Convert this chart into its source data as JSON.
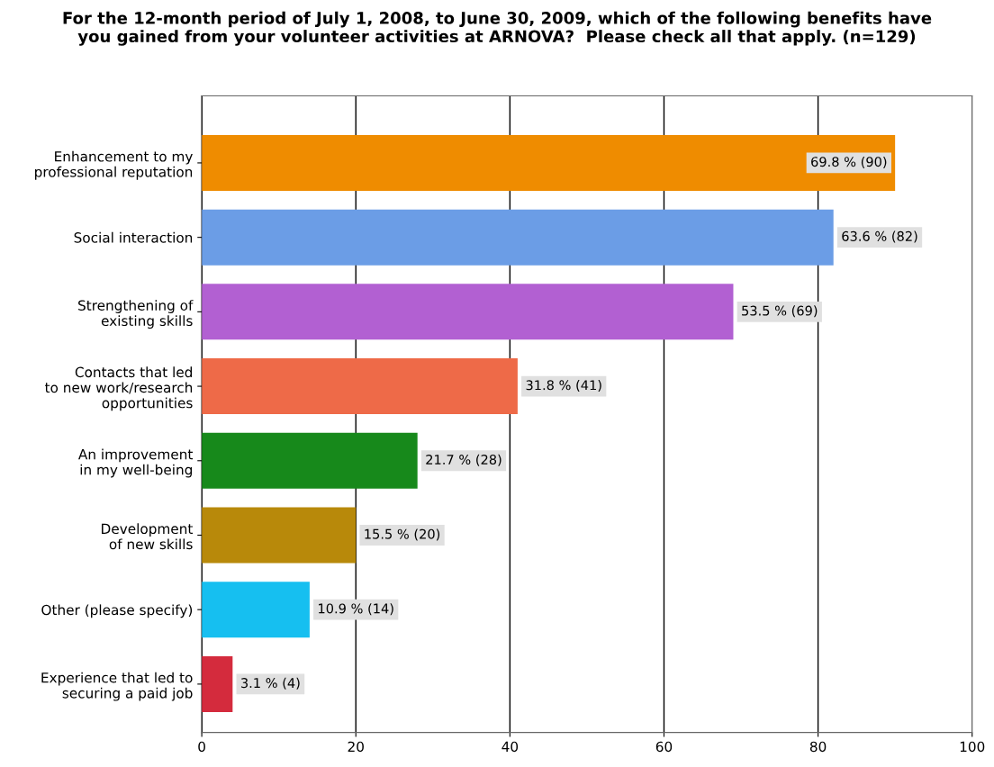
{
  "chart_data": {
    "type": "bar",
    "orientation": "horizontal",
    "title": "For the 12-month period of July 1, 2008, to June 30, 2009, which of the following benefits have\nyou gained from your volunteer activities at ARNOVA?  Please check all that apply. (n=129)",
    "categories": [
      "Enhancement to my\nprofessional reputation",
      "Social interaction",
      "Strengthening of\nexisting skills",
      "Contacts that led\nto new work/research\nopportunities",
      "An improvement\nin my well-being",
      "Development\nof new skills",
      "Other (please specify)",
      "Experience that led to\nsecuring a paid job"
    ],
    "values": [
      90,
      82,
      69,
      41,
      28,
      20,
      14,
      4
    ],
    "colors": [
      "#ef8c00",
      "#6b9de6",
      "#b260d2",
      "#ee6a48",
      "#17891b",
      "#b8890a",
      "#16bff0",
      "#d42b3d"
    ],
    "value_labels": [
      "69.8 % (90)",
      "63.6 % (82)",
      "53.5 % (69)",
      "31.8 % (41)",
      "21.7 % (28)",
      "15.5 % (20)",
      "10.9 % (14)",
      "3.1 % (4)"
    ],
    "xlim": [
      0,
      100
    ],
    "xticks": [
      0,
      20,
      40,
      60,
      80,
      100
    ],
    "grid": "x"
  }
}
